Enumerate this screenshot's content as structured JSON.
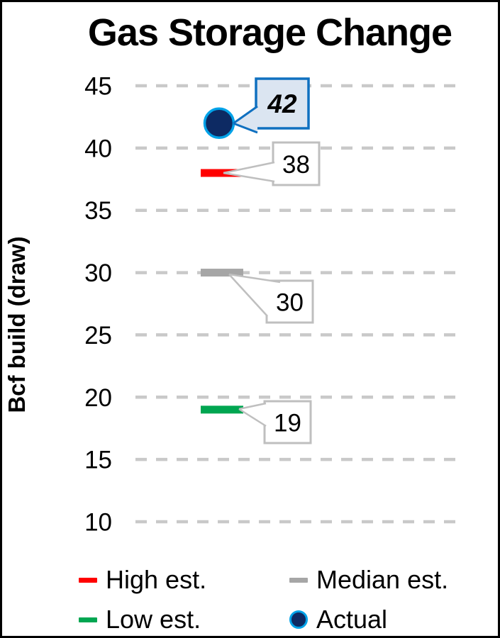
{
  "title": "Gas Storage Change",
  "y_axis": {
    "label": "Bcf build (draw)",
    "ticks": [
      45,
      40,
      35,
      30,
      25,
      20,
      15,
      10
    ]
  },
  "chart_data": {
    "type": "scatter",
    "title": "Gas Storage Change",
    "xlabel": "",
    "ylabel": "Bcf build (draw)",
    "ylim": [
      10,
      45
    ],
    "yticks": [
      45,
      40,
      35,
      30,
      25,
      20,
      15,
      10
    ],
    "grid": "horizontal-dashed",
    "legend_position": "bottom",
    "series": [
      {
        "name": "High est.",
        "value": 38,
        "marker": "dash",
        "color": "#FF0000",
        "data_label": "38",
        "data_label_highlighted": false
      },
      {
        "name": "Median est.",
        "value": 30,
        "marker": "dash",
        "color": "#A6A6A6",
        "data_label": "30",
        "data_label_highlighted": false
      },
      {
        "name": "Low est.",
        "value": 19,
        "marker": "dash",
        "color": "#00A651",
        "data_label": "19",
        "data_label_highlighted": false
      },
      {
        "name": "Actual",
        "value": 42,
        "marker": "circle",
        "color": "#0D2A63",
        "marker_ring_color": "#00A2E8",
        "data_label": "42",
        "data_label_highlighted": true
      }
    ]
  },
  "legend": {
    "items": [
      {
        "label": "High est.",
        "marker": "dash",
        "color": "#FF0000"
      },
      {
        "label": "Median est.",
        "marker": "dash",
        "color": "#A6A6A6"
      },
      {
        "label": "Low est.",
        "marker": "dash",
        "color": "#00A651"
      },
      {
        "label": "Actual",
        "marker": "circle",
        "color": "#0D2A63",
        "ring_color": "#00A2E8"
      }
    ]
  },
  "colors": {
    "gridline": "#C9C9C9",
    "tick_text": "#000000",
    "callout_border": "#BFBFBF",
    "callout_fill": "#FFFFFF",
    "highlight_callout_border": "#0F70C0",
    "highlight_callout_fill": "#DBE5F1",
    "frame": "#000000"
  }
}
